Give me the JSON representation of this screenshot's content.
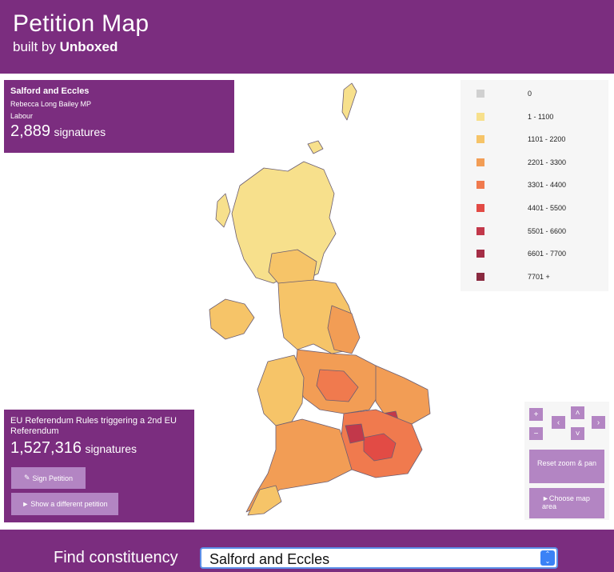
{
  "header": {
    "title": "Petition Map",
    "subtitle_prefix": "built by",
    "subtitle_brand": "Unboxed"
  },
  "constituency": {
    "name": "Salford and Eccles",
    "mp": "Rebecca Long Bailey MP",
    "party": "Labour",
    "count": "2,889",
    "count_label": "signatures"
  },
  "legend": {
    "items": [
      {
        "label": "0",
        "color": "#d0d0d0"
      },
      {
        "label": "1 - 1100",
        "color": "#f7e08c"
      },
      {
        "label": "1101 - 2200",
        "color": "#f6c468"
      },
      {
        "label": "2201 - 3300",
        "color": "#f29d55"
      },
      {
        "label": "3301 - 4400",
        "color": "#f07a4e"
      },
      {
        "label": "4401 - 5500",
        "color": "#e24b45"
      },
      {
        "label": "5501 - 6600",
        "color": "#c2384a"
      },
      {
        "label": "6601 - 7700",
        "color": "#a52e46"
      },
      {
        "label": "7701 +",
        "color": "#8a2a40"
      }
    ]
  },
  "petition": {
    "title": "EU Referendum Rules triggering a 2nd EU Referendum",
    "count": "1,527,316",
    "count_label": "signatures",
    "sign_label": "Sign Petition",
    "show_label": "Show a different petition"
  },
  "controls": {
    "zoom_in": "+",
    "zoom_out": "−",
    "pan_up": "˄",
    "pan_down": "˅",
    "pan_left": "‹",
    "pan_right": "›",
    "reset_label": "Reset zoom & pan",
    "choose_label": "►Choose map area"
  },
  "footer": {
    "find_label": "Find constituency",
    "selected": "Salford and Eccles"
  },
  "map": {
    "colors": [
      "#f7e08c",
      "#f6c468",
      "#f29d55",
      "#f07a4e",
      "#e24b45",
      "#c2384a"
    ],
    "border": "#6b5e73"
  }
}
